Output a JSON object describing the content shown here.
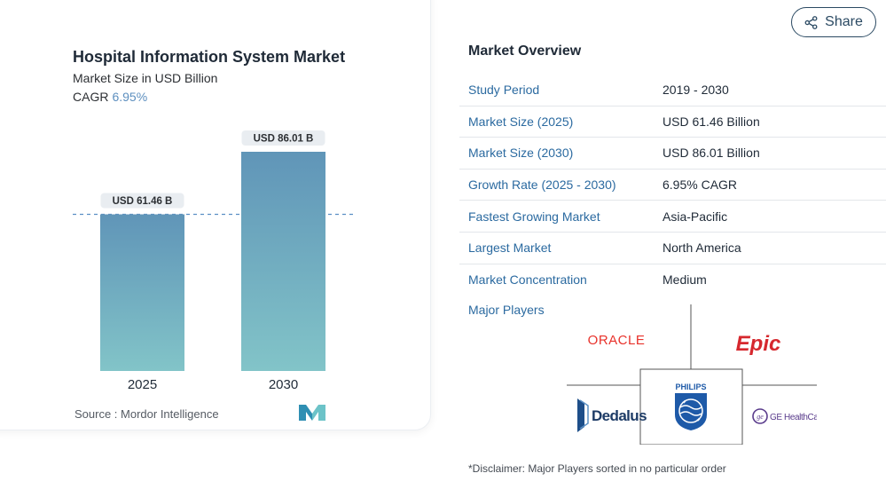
{
  "chart": {
    "title": "Hospital Information System Market",
    "subtitle": "Market Size in USD Billion",
    "cagr_label": "CAGR",
    "cagr_value": "6.95%",
    "source": "Source :  Mordor Intelligence"
  },
  "chart_data": {
    "type": "bar",
    "title": "Hospital Information System Market",
    "subtitle": "Market Size in USD Billion",
    "categories": [
      "2025",
      "2030"
    ],
    "values": [
      61.46,
      86.01
    ],
    "data_labels": [
      "USD 61.46 B",
      "USD 86.01 B"
    ],
    "ylim": [
      0,
      100
    ],
    "grid": false,
    "colors": {
      "bar_top": "#6095b8",
      "bar_bottom": "#82c4c8",
      "reference_line": "#5b8fc4"
    }
  },
  "share": {
    "label": "Share",
    "icon": "share-icon"
  },
  "overview": {
    "title": "Market Overview",
    "rows": [
      {
        "label": "Study Period",
        "value": "2019 - 2030"
      },
      {
        "label": "Market Size (2025)",
        "value": "USD 61.46 Billion"
      },
      {
        "label": "Market Size (2030)",
        "value": "USD 86.01 Billion"
      },
      {
        "label": "Growth Rate (2025 - 2030)",
        "value": "6.95% CAGR"
      },
      {
        "label": "Fastest Growing Market",
        "value": "Asia-Pacific"
      },
      {
        "label": "Largest Market",
        "value": "North America"
      },
      {
        "label": "Market Concentration",
        "value": "Medium"
      }
    ]
  },
  "major_players": {
    "title": "Major Players",
    "logos": {
      "oracle": "ORACLE",
      "epic": "Epic",
      "dedalus": "Dedalus",
      "philips": "PHILIPS",
      "ge": "GE HealthCare"
    }
  },
  "disclaimer": "*Disclaimer: Major Players sorted in no particular order",
  "colors": {
    "accent": "#2b6aa0",
    "share_border": "#2b4a63",
    "oracle": "#e8322b",
    "epic": "#d6282e",
    "philips": "#1e5aa8",
    "dedalus": "#1d4e89",
    "ge": "#5a3c8c"
  }
}
